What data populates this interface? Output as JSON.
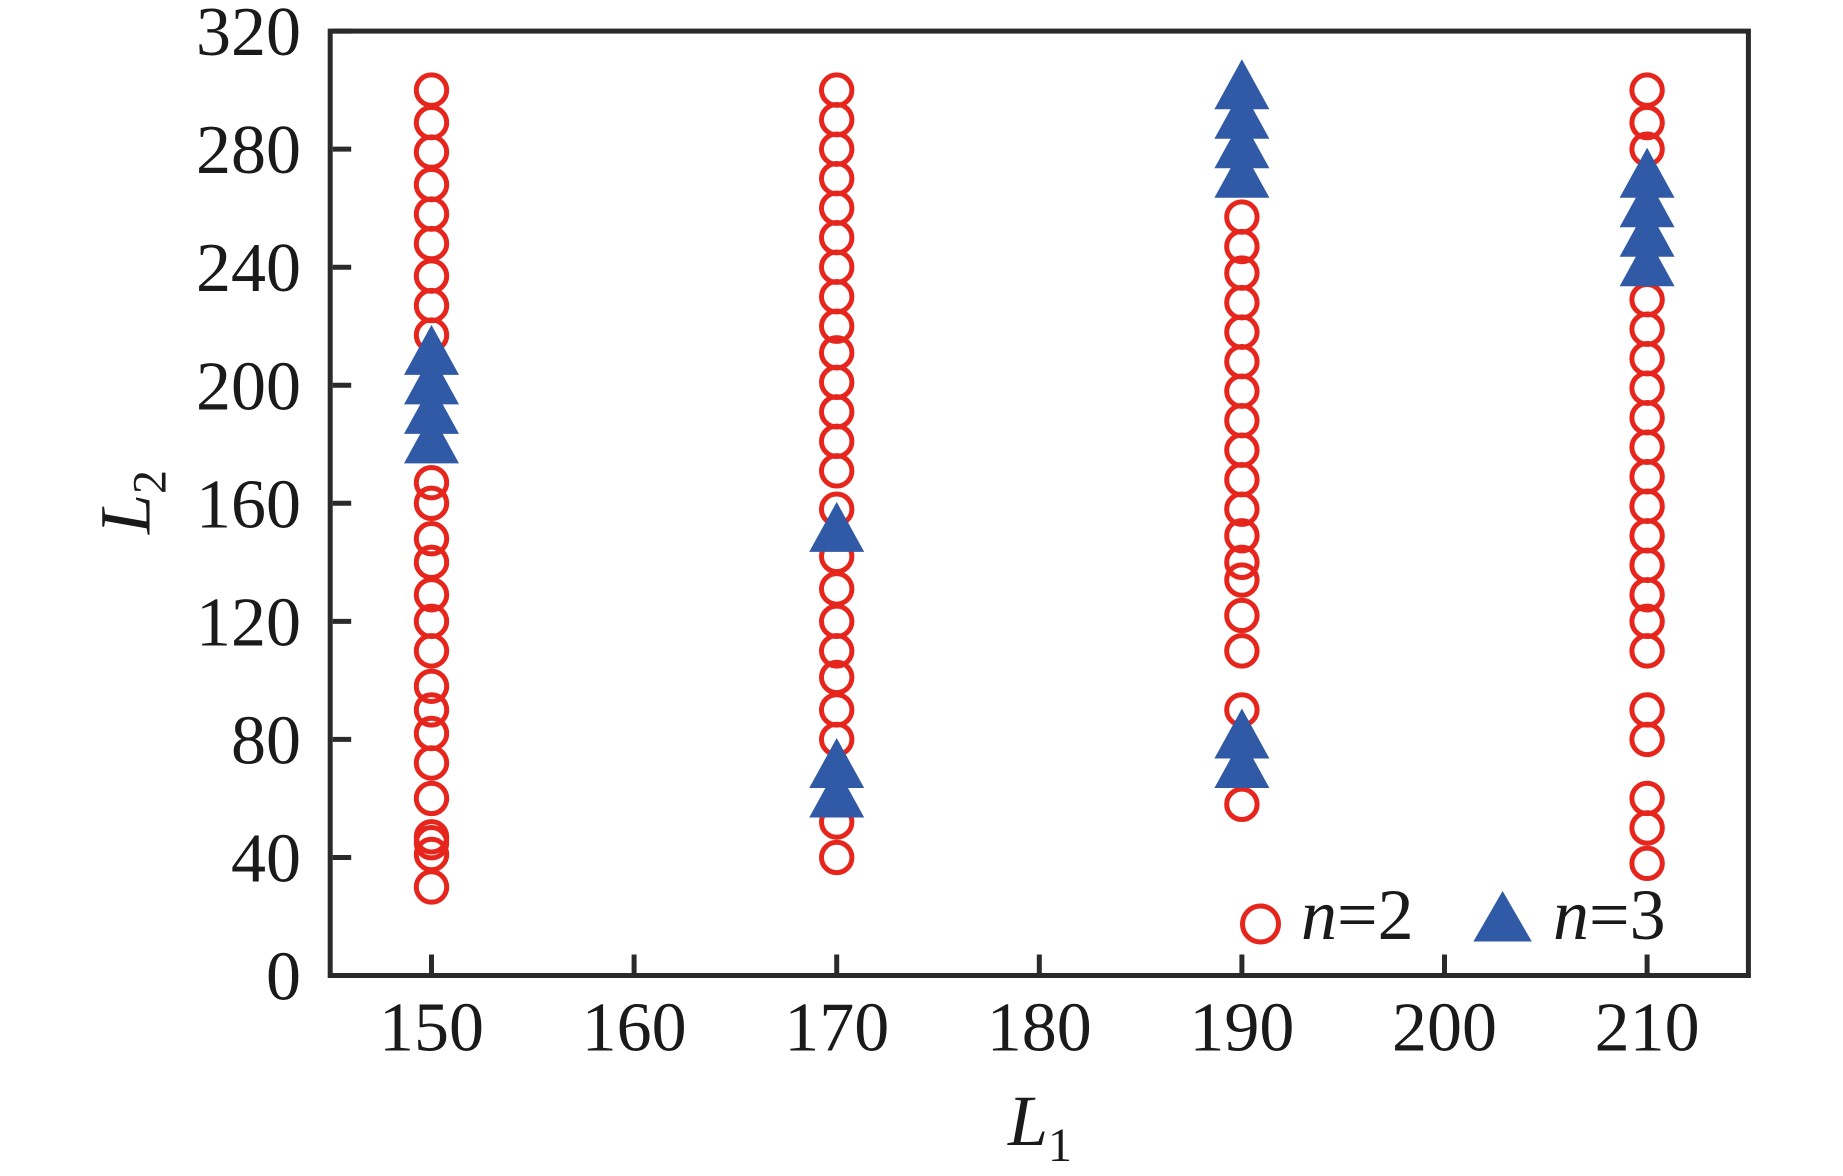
{
  "chart_data": {
    "type": "scatter",
    "title": "",
    "xlabel": {
      "main": "L",
      "sub": "1"
    },
    "ylabel": {
      "main": "L",
      "sub": "2"
    },
    "xlim": [
      145,
      215
    ],
    "ylim": [
      0,
      320
    ],
    "xticks": [
      "150",
      "160",
      "170",
      "180",
      "190",
      "200",
      "210"
    ],
    "yticks": [
      "0",
      "40",
      "80",
      "120",
      "160",
      "200",
      "240",
      "280",
      "320"
    ],
    "grid": false,
    "legend_position": "lower right inside",
    "series": [
      {
        "name": "n=2",
        "label": {
          "var": "n",
          "rest": "=2"
        },
        "marker": "open-circle",
        "color": "#e6251c",
        "points": [
          [
            150,
            300
          ],
          [
            150,
            289
          ],
          [
            150,
            279
          ],
          [
            150,
            268
          ],
          [
            150,
            258
          ],
          [
            150,
            248
          ],
          [
            150,
            237
          ],
          [
            150,
            227
          ],
          [
            150,
            217
          ],
          [
            150,
            167
          ],
          [
            150,
            160
          ],
          [
            150,
            148
          ],
          [
            150,
            140
          ],
          [
            150,
            129
          ],
          [
            150,
            120
          ],
          [
            150,
            110
          ],
          [
            150,
            98
          ],
          [
            150,
            90
          ],
          [
            150,
            82
          ],
          [
            150,
            72
          ],
          [
            150,
            60
          ],
          [
            150,
            47
          ],
          [
            150,
            45
          ],
          [
            150,
            41
          ],
          [
            150,
            30
          ],
          [
            170,
            300
          ],
          [
            170,
            290
          ],
          [
            170,
            280
          ],
          [
            170,
            270
          ],
          [
            170,
            260
          ],
          [
            170,
            250
          ],
          [
            170,
            240
          ],
          [
            170,
            230
          ],
          [
            170,
            220
          ],
          [
            170,
            211
          ],
          [
            170,
            201
          ],
          [
            170,
            191
          ],
          [
            170,
            181
          ],
          [
            170,
            171
          ],
          [
            170,
            158
          ],
          [
            170,
            142
          ],
          [
            170,
            131
          ],
          [
            170,
            120
          ],
          [
            170,
            110
          ],
          [
            170,
            101
          ],
          [
            170,
            90
          ],
          [
            170,
            80
          ],
          [
            170,
            52
          ],
          [
            170,
            40
          ],
          [
            190,
            257
          ],
          [
            190,
            247
          ],
          [
            190,
            238
          ],
          [
            190,
            228
          ],
          [
            190,
            218
          ],
          [
            190,
            208
          ],
          [
            190,
            198
          ],
          [
            190,
            188
          ],
          [
            190,
            178
          ],
          [
            190,
            168
          ],
          [
            190,
            158
          ],
          [
            190,
            149
          ],
          [
            190,
            140
          ],
          [
            190,
            134
          ],
          [
            190,
            122
          ],
          [
            190,
            110
          ],
          [
            190,
            90
          ],
          [
            190,
            58
          ],
          [
            210,
            300
          ],
          [
            210,
            289
          ],
          [
            210,
            280
          ],
          [
            210,
            229
          ],
          [
            210,
            219
          ],
          [
            210,
            209
          ],
          [
            210,
            199
          ],
          [
            210,
            189
          ],
          [
            210,
            179
          ],
          [
            210,
            169
          ],
          [
            210,
            159
          ],
          [
            210,
            149
          ],
          [
            210,
            139
          ],
          [
            210,
            129
          ],
          [
            210,
            120
          ],
          [
            210,
            110
          ],
          [
            210,
            90
          ],
          [
            210,
            80
          ],
          [
            210,
            60
          ],
          [
            210,
            50
          ],
          [
            210,
            38
          ]
        ]
      },
      {
        "name": "n=3",
        "label": {
          "var": "n",
          "rest": "=3"
        },
        "marker": "filled-triangle",
        "color": "#3059a6",
        "points": [
          [
            150,
            212
          ],
          [
            150,
            202
          ],
          [
            150,
            192
          ],
          [
            150,
            182
          ],
          [
            170,
            152
          ],
          [
            170,
            72
          ],
          [
            170,
            62
          ],
          [
            190,
            302
          ],
          [
            190,
            292
          ],
          [
            190,
            282
          ],
          [
            190,
            272
          ],
          [
            190,
            82
          ],
          [
            190,
            72
          ],
          [
            210,
            272
          ],
          [
            210,
            262
          ],
          [
            210,
            252
          ],
          [
            210,
            242
          ]
        ]
      }
    ],
    "axis_color": "#2a2a2a",
    "text_color": "#1a1a1a",
    "background_color": "#ffffff"
  }
}
